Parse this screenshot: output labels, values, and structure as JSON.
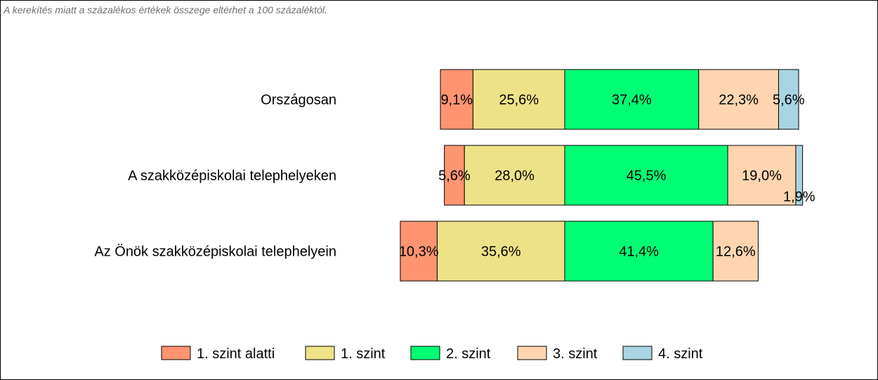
{
  "note": "A kerekítés miatt a  százalékos értékek összege eltérhet a 100 százaléktól.",
  "chart_data": {
    "type": "bar",
    "orientation": "horizontal",
    "stacked": true,
    "alignment": "centered-diverging",
    "categories": [
      "Országosan",
      "A szakközépiskolai telephelyeken",
      "Az Önök szakközépiskolai telephelyein"
    ],
    "series": [
      {
        "name": "1. szint alatti",
        "color": "#FF9471",
        "values": [
          9.1,
          5.6,
          10.3
        ],
        "labels": [
          "9,1%",
          "5,6%",
          "10,3%"
        ]
      },
      {
        "name": "1. szint",
        "color": "#EEE288",
        "values": [
          25.6,
          28.0,
          35.6
        ],
        "labels": [
          "25,6%",
          "28,0%",
          "35,6%"
        ]
      },
      {
        "name": "2. szint",
        "color": "#00FF74",
        "values": [
          37.4,
          45.5,
          41.4
        ],
        "labels": [
          "37,4%",
          "45,5%",
          "41,4%"
        ]
      },
      {
        "name": "3. szint",
        "color": "#FFD5B1",
        "values": [
          22.3,
          19.0,
          12.6
        ],
        "labels": [
          "22,3%",
          "19,0%",
          "12,6%"
        ]
      },
      {
        "name": "4. szint",
        "color": "#A9D4E3",
        "values": [
          5.6,
          1.9,
          0
        ],
        "labels": [
          "5,6%",
          "1,9%",
          ""
        ]
      }
    ],
    "legend_position": "bottom",
    "grid": false
  }
}
